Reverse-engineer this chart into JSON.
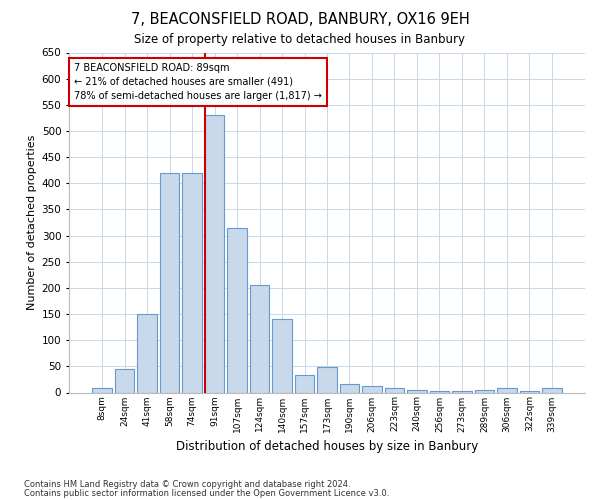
{
  "title": "7, BEACONSFIELD ROAD, BANBURY, OX16 9EH",
  "subtitle": "Size of property relative to detached houses in Banbury",
  "xlabel": "Distribution of detached houses by size in Banbury",
  "ylabel": "Number of detached properties",
  "categories": [
    "8sqm",
    "24sqm",
    "41sqm",
    "58sqm",
    "74sqm",
    "91sqm",
    "107sqm",
    "124sqm",
    "140sqm",
    "157sqm",
    "173sqm",
    "190sqm",
    "206sqm",
    "223sqm",
    "240sqm",
    "256sqm",
    "273sqm",
    "289sqm",
    "306sqm",
    "322sqm",
    "339sqm"
  ],
  "values": [
    8,
    45,
    150,
    420,
    420,
    530,
    315,
    205,
    140,
    33,
    48,
    17,
    13,
    8,
    5,
    3,
    3,
    5,
    8,
    3,
    8
  ],
  "bar_color": "#c9d9ec",
  "bar_edge_color": "#6699cc",
  "annotation_title": "7 BEACONSFIELD ROAD: 89sqm",
  "annotation_line1": "← 21% of detached houses are smaller (491)",
  "annotation_line2": "78% of semi-detached houses are larger (1,817) →",
  "annotation_box_color": "#ffffff",
  "annotation_box_edge": "#cc0000",
  "vline_color": "#cc0000",
  "grid_color": "#c8d8e8",
  "background_color": "#ffffff",
  "footnote1": "Contains HM Land Registry data © Crown copyright and database right 2024.",
  "footnote2": "Contains public sector information licensed under the Open Government Licence v3.0.",
  "ylim": [
    0,
    650
  ],
  "yticks": [
    0,
    50,
    100,
    150,
    200,
    250,
    300,
    350,
    400,
    450,
    500,
    550,
    600,
    650
  ],
  "vline_index": 5
}
